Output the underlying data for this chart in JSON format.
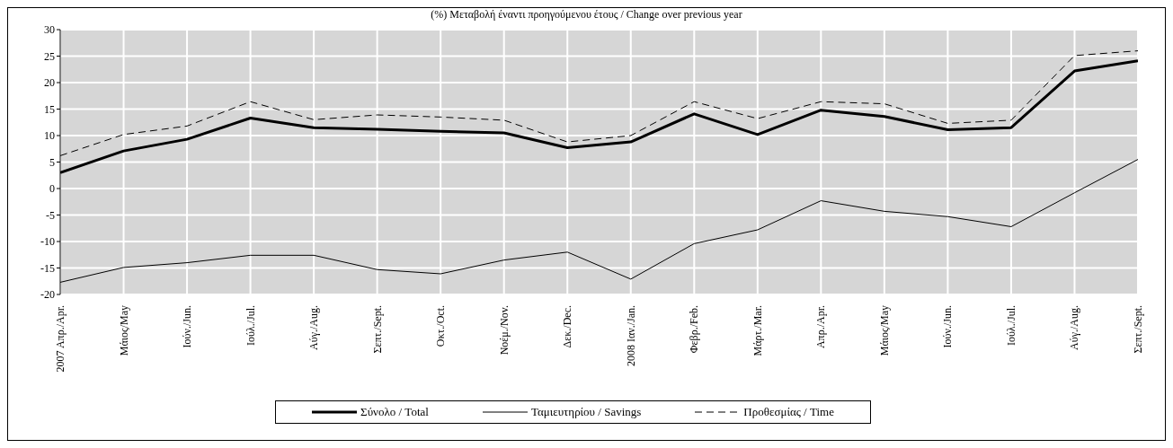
{
  "chart_data": {
    "type": "line",
    "title": "(%) Μεταβολή έναντι προηγούμενου έτους / Change over previous year",
    "categories": [
      "2007 Απρ./Apr.",
      "Μάιος/May",
      "Ιούν./Jun.",
      "Ιούλ./Jul.",
      "Αύγ./Aug.",
      "Σεπτ./Sept.",
      "Οκτ./Oct.",
      "Νοέμ./Nov.",
      "Δεκ./Dec.",
      "2008 Ιαν./Jan.",
      "Φεβρ./Feb.",
      "Μάρτ./Mar.",
      "Απρ./Apr.",
      "Μάιος/May",
      "Ιούν./Jun.",
      "Ιούλ./Jul.",
      "Αύγ./Aug.",
      "Σεπτ./Sept."
    ],
    "series": [
      {
        "name": "Σύνολο / Total",
        "color": "#000000",
        "line_style": "solid",
        "values": [
          3.0,
          7.1,
          9.3,
          13.3,
          11.5,
          11.2,
          10.8,
          10.5,
          7.7,
          8.8,
          14.1,
          10.2,
          14.8,
          13.6,
          11.1,
          11.5,
          22.2,
          24.1
        ]
      },
      {
        "name": "Ταμιευτηρίου / Savings",
        "color": "#000000",
        "line_style": "solid",
        "values": [
          -17.7,
          -14.9,
          -14.0,
          -12.6,
          -12.6,
          -15.3,
          -16.1,
          -13.5,
          -12.0,
          -17.1,
          -10.4,
          -7.8,
          -2.3,
          -4.3,
          -5.3,
          -7.2,
          -0.8,
          5.5
        ]
      },
      {
        "name": "Προθεσμίας / Time",
        "color": "#000000",
        "line_style": "dashed",
        "values": [
          6.2,
          10.2,
          11.8,
          16.4,
          13.0,
          13.9,
          13.5,
          12.9,
          8.8,
          10.0,
          16.4,
          13.2,
          16.4,
          16.0,
          12.3,
          12.9,
          25.1,
          26.0
        ]
      }
    ],
    "ylim": [
      -20,
      30
    ],
    "yticks": [
      -20,
      -15,
      -10,
      -5,
      0,
      5,
      10,
      15,
      20,
      25,
      30
    ],
    "grid": true,
    "legend": "bottom",
    "marker": "none"
  }
}
